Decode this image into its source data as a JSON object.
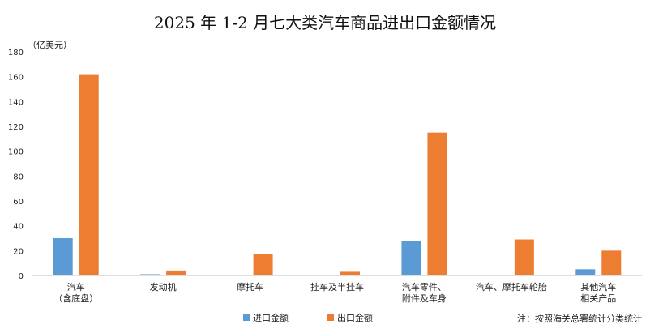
{
  "colors": {
    "import": "#5b9bd5",
    "export": "#ed7d31",
    "axis": "#bfbfbf",
    "text": "#222222"
  },
  "chart_data": {
    "type": "bar",
    "title": "2025 年 1-2 月七大类汽车商品进出口金额情况",
    "unit": "（亿美元）",
    "ylim": [
      0,
      180
    ],
    "yticks": [
      0,
      20,
      40,
      60,
      80,
      100,
      120,
      140,
      160,
      180
    ],
    "grid": false,
    "legend_position": "bottom",
    "categories": [
      [
        "汽车",
        "（含底盘）"
      ],
      [
        "发动机"
      ],
      [
        "摩托车"
      ],
      [
        "挂车及半挂车"
      ],
      [
        "汽车零件、",
        "附件及车身"
      ],
      [
        "汽车、摩托车轮胎"
      ],
      [
        "其他汽车",
        "相关产品"
      ]
    ],
    "series": [
      {
        "name": "进口金额",
        "values": [
          30,
          1,
          0,
          0,
          28,
          0,
          5
        ]
      },
      {
        "name": "出口金额",
        "values": [
          162,
          4,
          17,
          3,
          115,
          29,
          20
        ]
      }
    ],
    "note": "注：按照海关总署统计分类统计"
  }
}
